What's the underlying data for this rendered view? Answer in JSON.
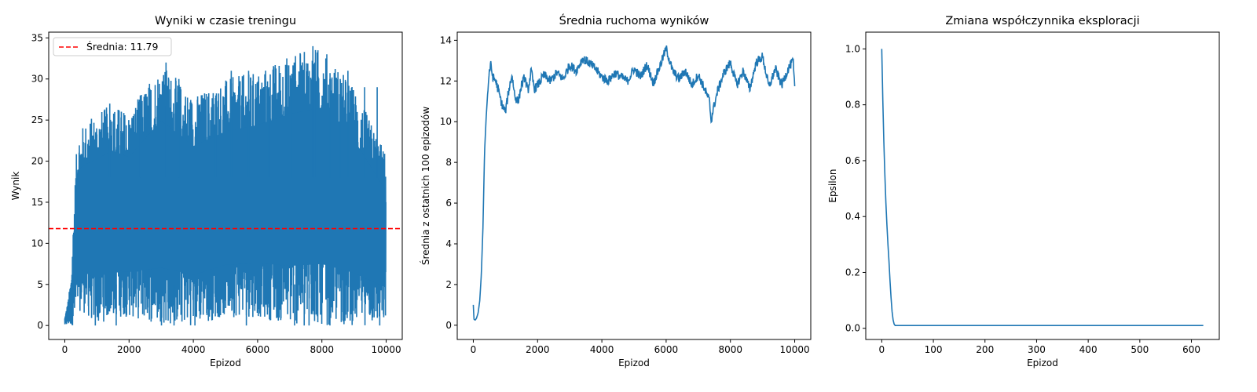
{
  "chart_data": [
    {
      "type": "line",
      "title": "Wyniki w czasie treningu",
      "xlabel": "Epizod",
      "ylabel": "Wynik",
      "xlim": [
        -500,
        10500
      ],
      "ylim": [
        -1.7,
        35.7
      ],
      "xticks": [
        0,
        2000,
        4000,
        6000,
        8000,
        10000
      ],
      "yticks": [
        0,
        5,
        10,
        15,
        20,
        25,
        30,
        35
      ],
      "color": "#1f77b4",
      "series": [
        {
          "kind": "band",
          "x": [
            0,
            100,
            200,
            250,
            300,
            350,
            400,
            500,
            700,
            1000,
            1500,
            2000,
            3000,
            4000,
            5000,
            6000,
            7000,
            8000,
            9000,
            9990
          ],
          "low": [
            0,
            0,
            0,
            0,
            0,
            0,
            1,
            2,
            1,
            0,
            1,
            1,
            0,
            0,
            1,
            1,
            0,
            0,
            0,
            0
          ],
          "high": [
            1,
            3,
            6,
            11,
            16,
            20,
            24,
            24,
            25,
            26,
            27,
            26,
            32,
            28,
            30,
            31,
            33,
            34,
            29,
            21
          ]
        },
        {
          "kind": "spikes",
          "x": [
            3150,
            5180,
            5720,
            7050,
            7720,
            7780,
            8570,
            8810,
            9330,
            9720,
            1400,
            2350,
            3550,
            4700,
            6350,
            8250
          ],
          "low": [],
          "high": [
            32,
            31,
            31,
            29,
            34,
            32,
            30,
            31,
            29,
            29,
            27,
            28,
            30,
            28,
            29,
            30
          ]
        },
        {
          "kind": "spikes-low",
          "x": [
            950,
            1600,
            3400,
            4050,
            5650,
            7150,
            7450,
            7600,
            8250,
            9800
          ],
          "high": [],
          "low": [
            0,
            0,
            0,
            0,
            0,
            0,
            0,
            0,
            0,
            0
          ]
        }
      ],
      "hline": {
        "y": 11.79,
        "color": "#ff0000",
        "style": "dashed"
      },
      "legend": {
        "label": "Średnia: 11.79",
        "placement": "top-left"
      }
    },
    {
      "type": "line",
      "title": "Średnia ruchoma wyników",
      "xlabel": "Epizod",
      "ylabel": "Średnia z ostatnich 100 epizodów",
      "xlim": [
        -500,
        10500
      ],
      "ylim": [
        -0.7,
        14.4
      ],
      "xticks": [
        0,
        2000,
        4000,
        6000,
        8000,
        10000
      ],
      "yticks": [
        0,
        2,
        4,
        6,
        8,
        10,
        12,
        14
      ],
      "color": "#1f77b4",
      "series": [
        {
          "x": [
            0,
            20,
            60,
            100,
            150,
            200,
            250,
            300,
            350,
            400,
            450,
            500,
            550,
            600,
            700,
            800,
            900,
            1000,
            1100,
            1200,
            1300,
            1400,
            1500,
            1600,
            1700,
            1800,
            1900,
            2000,
            2200,
            2400,
            2600,
            2800,
            3000,
            3200,
            3400,
            3600,
            3800,
            4000,
            4200,
            4400,
            4600,
            4800,
            5000,
            5200,
            5400,
            5600,
            5800,
            6000,
            6200,
            6400,
            6600,
            6800,
            7000,
            7200,
            7350,
            7400,
            7450,
            7600,
            7800,
            8000,
            8200,
            8400,
            8600,
            8800,
            9000,
            9200,
            9400,
            9600,
            9800,
            9950,
            10000
          ],
          "y": [
            1.0,
            0.3,
            0.25,
            0.35,
            0.6,
            1.2,
            2.5,
            4.8,
            8.5,
            10.2,
            11.5,
            12.5,
            12.8,
            12.2,
            12.0,
            11.4,
            10.8,
            10.5,
            11.5,
            12.3,
            11.2,
            11.0,
            11.8,
            12.2,
            11.5,
            12.5,
            11.6,
            11.8,
            12.3,
            12.0,
            12.4,
            12.1,
            12.8,
            12.5,
            13.1,
            12.9,
            12.6,
            12.2,
            12.0,
            12.4,
            12.2,
            12.0,
            12.6,
            12.2,
            12.8,
            11.9,
            12.7,
            13.6,
            12.5,
            12.1,
            12.5,
            11.8,
            12.3,
            11.6,
            11.0,
            10.0,
            10.5,
            11.5,
            12.4,
            12.9,
            11.8,
            12.5,
            11.6,
            12.9,
            13.2,
            11.7,
            12.6,
            11.8,
            12.6,
            13.0,
            11.6
          ]
        }
      ]
    },
    {
      "type": "line",
      "title": "Zmiana współczynnika eksploracji",
      "xlabel": "Epizod",
      "ylabel": "Epsilon",
      "xlim": [
        -31,
        654
      ],
      "ylim": [
        -0.04,
        1.06
      ],
      "xticks": [
        0,
        100,
        200,
        300,
        400,
        500,
        600
      ],
      "yticks": [
        0.0,
        0.2,
        0.4,
        0.6,
        0.8,
        1.0
      ],
      "color": "#1f77b4",
      "series": [
        {
          "x": [
            0,
            2,
            4,
            6,
            8,
            10,
            12,
            14,
            16,
            18,
            20,
            22,
            24,
            26,
            30,
            40,
            100,
            200,
            300,
            400,
            500,
            600,
            623
          ],
          "y": [
            1.0,
            0.82,
            0.67,
            0.55,
            0.45,
            0.37,
            0.3,
            0.24,
            0.17,
            0.11,
            0.06,
            0.03,
            0.015,
            0.01,
            0.01,
            0.01,
            0.01,
            0.01,
            0.01,
            0.01,
            0.01,
            0.01,
            0.01
          ]
        }
      ]
    }
  ]
}
